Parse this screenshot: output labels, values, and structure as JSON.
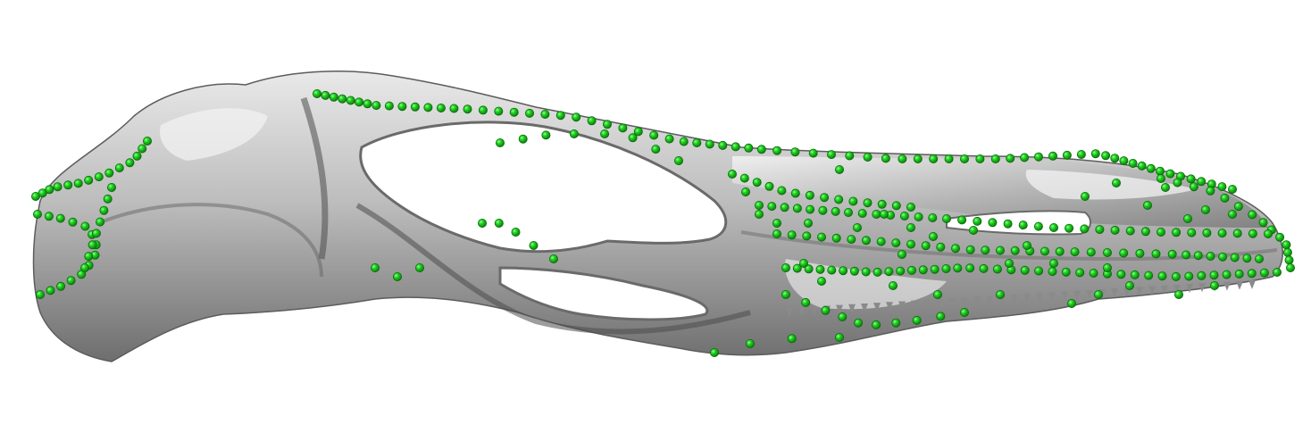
{
  "scene": {
    "background_color": "#ffffff",
    "model_color": "#bdbdbd",
    "model_highlight_color": "#f2f2f2",
    "model_shadow_color": "#5a5a5a",
    "landmark_color": "#1fd01f",
    "landmark_dark_color": "#0b7a0b",
    "landmark_icon": "sphere-landmark-icon",
    "subject_icon": "skull-3d-mesh-icon"
  }
}
